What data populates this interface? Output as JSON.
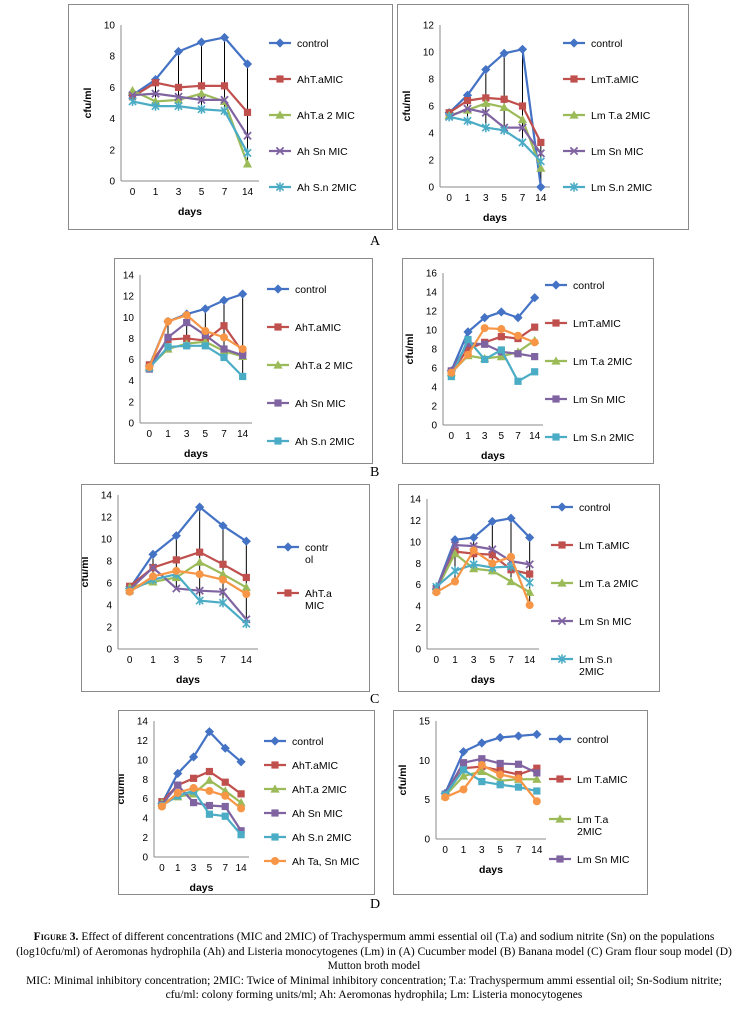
{
  "panel_labels": [
    "A",
    "B",
    "C",
    "D"
  ],
  "caption": {
    "figure_label": "Figure 3.",
    "line1": "Effect of different concentrations (MIC and 2MIC) of Trachyspermum ammi essential oil (T.a) and sodium nitrite (Sn) on the populations (log10cfu/ml) of Aeromonas hydrophila (Ah) and Listeria monocytogenes (Lm) in (A) Cucumber model (B) Banana model (C) Gram flour soup model (D) Mutton broth model",
    "line2": "MIC: Minimal inhibitory concentration; 2MIC: Twice of Minimal inhibitory concentration; T.a: Trachyspermum ammi essential oil; Sn-Sodium nitrite; cfu/ml: colony forming units/ml; Ah: Aeromonas hydrophila; Lm: Listeria monocytogenes"
  },
  "chart_data": [
    {
      "id": "A-left",
      "type": "line",
      "xlabel": "days",
      "ylabel": "cfu/ml",
      "categories": [
        "0",
        "1",
        "3",
        "5",
        "7",
        "14"
      ],
      "ylim": [
        0,
        10
      ],
      "ystep": 2,
      "droplines": true,
      "series": [
        {
          "name": "control",
          "color": "#4472C4",
          "marker": "diamond",
          "values": [
            5.5,
            6.5,
            8.3,
            8.9,
            9.2,
            7.5
          ]
        },
        {
          "name": "AhT.aMIC",
          "color": "#C0504D",
          "marker": "square",
          "values": [
            5.4,
            6.3,
            6.0,
            6.1,
            6.1,
            4.4
          ]
        },
        {
          "name": "AhT.a 2 MIC",
          "color": "#9BBB59",
          "marker": "triangle",
          "values": [
            5.8,
            5.1,
            5.2,
            5.6,
            5.1,
            1.1
          ]
        },
        {
          "name": "Ah Sn MIC",
          "color": "#8064A2",
          "marker": "x",
          "values": [
            5.5,
            5.6,
            5.4,
            5.2,
            5.2,
            2.9
          ]
        },
        {
          "name": "Ah S.n  2MIC",
          "color": "#4BACC6",
          "marker": "star",
          "values": [
            5.1,
            4.8,
            4.8,
            4.6,
            4.5,
            1.8
          ]
        }
      ]
    },
    {
      "id": "A-right",
      "type": "line",
      "xlabel": "days",
      "ylabel": "cfu/ml",
      "categories": [
        "0",
        "1",
        "3",
        "5",
        "7",
        "14"
      ],
      "ylim": [
        0,
        12
      ],
      "ystep": 2,
      "droplines": true,
      "series": [
        {
          "name": "control",
          "color": "#4472C4",
          "marker": "diamond",
          "values": [
            5.5,
            6.8,
            8.7,
            9.9,
            10.2,
            0
          ]
        },
        {
          "name": "LmT.aMIC",
          "color": "#C0504D",
          "marker": "square",
          "values": [
            5.5,
            6.4,
            6.6,
            6.5,
            6.0,
            3.3
          ]
        },
        {
          "name": "Lm T.a 2MIC",
          "color": "#9BBB59",
          "marker": "triangle",
          "values": [
            5.3,
            5.7,
            6.2,
            5.9,
            5.0,
            1.4
          ]
        },
        {
          "name": "Lm Sn MIC",
          "color": "#8064A2",
          "marker": "x",
          "values": [
            5.2,
            5.8,
            5.5,
            4.4,
            4.4,
            2.5
          ]
        },
        {
          "name": "Lm S.n 2MIC",
          "color": "#4BACC6",
          "marker": "star",
          "values": [
            5.2,
            4.9,
            4.4,
            4.2,
            3.3,
            1.9
          ]
        }
      ]
    },
    {
      "id": "B-left",
      "type": "line",
      "xlabel": "days",
      "ylabel": "cfu/ml",
      "categories": [
        "0",
        "1",
        "3",
        "5",
        "7",
        "14"
      ],
      "ylim": [
        0,
        14
      ],
      "ystep": 2,
      "droplines": true,
      "series": [
        {
          "name": "control",
          "color": "#4472C4",
          "marker": "diamond",
          "values": [
            5.4,
            9.6,
            10.3,
            10.8,
            11.6,
            12.2
          ]
        },
        {
          "name": "AhT.aMIC",
          "color": "#C0504D",
          "marker": "square",
          "values": [
            5.5,
            7.9,
            8.0,
            7.8,
            9.2,
            6.7
          ]
        },
        {
          "name": "AhT.a 2 MIC",
          "color": "#9BBB59",
          "marker": "triangle",
          "values": [
            5.3,
            7.0,
            7.5,
            7.7,
            6.8,
            6.3
          ]
        },
        {
          "name": "Ah Sn MIC",
          "color": "#8064A2",
          "marker": "square",
          "values": [
            5.1,
            8.1,
            9.5,
            8.3,
            7.0,
            6.4
          ]
        },
        {
          "name": "Ah S.n  2MIC",
          "color": "#4BACC6",
          "marker": "square",
          "values": [
            5.2,
            7.2,
            7.3,
            7.3,
            6.2,
            4.4
          ]
        },
        {
          "name": "",
          "color": "#F79646",
          "marker": "circle",
          "values": [
            5.3,
            9.6,
            10.2,
            8.7,
            8.1,
            7.0
          ]
        }
      ]
    },
    {
      "id": "B-right",
      "type": "line",
      "xlabel": "days",
      "ylabel": "cfu/ml",
      "categories": [
        "0",
        "1",
        "3",
        "5",
        "7",
        "14"
      ],
      "ylim": [
        0,
        16
      ],
      "ystep": 2,
      "droplines": false,
      "series": [
        {
          "name": "control",
          "color": "#4472C4",
          "marker": "diamond",
          "values": [
            5.7,
            9.8,
            11.3,
            11.9,
            11.3,
            13.4
          ]
        },
        {
          "name": "LmT.aMIC",
          "color": "#C0504D",
          "marker": "square",
          "values": [
            5.6,
            8.0,
            8.7,
            9.3,
            9.1,
            10.3
          ]
        },
        {
          "name": "Lm T.a 2MIC",
          "color": "#9BBB59",
          "marker": "triangle",
          "values": [
            5.5,
            7.3,
            7.0,
            7.2,
            7.7,
            8.9
          ]
        },
        {
          "name": "Lm Sn MIC",
          "color": "#8064A2",
          "marker": "square",
          "values": [
            5.7,
            8.6,
            8.5,
            7.7,
            7.5,
            7.2
          ]
        },
        {
          "name": "Lm S.n 2MIC",
          "color": "#4BACC6",
          "marker": "square",
          "values": [
            5.1,
            9.0,
            6.9,
            7.9,
            4.6,
            5.6
          ]
        },
        {
          "name": "",
          "color": "#F79646",
          "marker": "circle",
          "values": [
            5.5,
            7.4,
            10.2,
            10.1,
            9.4,
            8.7
          ]
        }
      ]
    },
    {
      "id": "C-left",
      "type": "line",
      "xlabel": "days",
      "ylabel": "cfu/ml",
      "categories": [
        "0",
        "1",
        "3",
        "5",
        "7",
        "14"
      ],
      "ylim": [
        0,
        14
      ],
      "ystep": 2,
      "droplines": true,
      "series": [
        {
          "name": "contr\nol",
          "color": "#4472C4",
          "marker": "diamond",
          "values": [
            5.5,
            8.6,
            10.3,
            12.9,
            11.2,
            9.8
          ]
        },
        {
          "name": "AhT.a\nMIC",
          "color": "#C0504D",
          "marker": "square",
          "values": [
            5.7,
            7.4,
            8.1,
            8.8,
            7.7,
            6.5
          ]
        },
        {
          "name": "",
          "color": "#9BBB59",
          "marker": "triangle",
          "values": [
            5.6,
            6.1,
            6.5,
            7.9,
            6.8,
            5.6
          ]
        },
        {
          "name": "",
          "color": "#8064A2",
          "marker": "x",
          "values": [
            5.4,
            7.4,
            5.5,
            5.3,
            5.2,
            2.7
          ]
        },
        {
          "name": "",
          "color": "#4BACC6",
          "marker": "star",
          "values": [
            5.3,
            6.3,
            6.8,
            4.4,
            4.2,
            2.3
          ]
        },
        {
          "name": "",
          "color": "#F79646",
          "marker": "circle",
          "values": [
            5.2,
            6.6,
            7.1,
            6.8,
            6.3,
            5.0
          ]
        }
      ]
    },
    {
      "id": "C-right",
      "type": "line",
      "xlabel": "days",
      "ylabel": "cfu/ml",
      "categories": [
        "0",
        "1",
        "3",
        "5",
        "7",
        "14"
      ],
      "ylim": [
        0,
        14
      ],
      "ystep": 2,
      "droplines": true,
      "series": [
        {
          "name": "control",
          "color": "#4472C4",
          "marker": "diamond",
          "values": [
            5.6,
            10.2,
            10.4,
            11.9,
            12.2,
            10.4
          ]
        },
        {
          "name": "Lm T.aMIC",
          "color": "#C0504D",
          "marker": "square",
          "values": [
            5.5,
            9.1,
            8.9,
            8.8,
            7.4,
            7.0
          ]
        },
        {
          "name": "Lm T.a 2MIC",
          "color": "#9BBB59",
          "marker": "triangle",
          "values": [
            5.5,
            8.9,
            7.5,
            7.3,
            6.3,
            5.3
          ]
        },
        {
          "name": "Lm Sn MIC",
          "color": "#8064A2",
          "marker": "x",
          "values": [
            5.6,
            9.7,
            9.6,
            9.3,
            8.2,
            7.9
          ]
        },
        {
          "name": "Lm S.n\n2MIC",
          "color": "#4BACC6",
          "marker": "star",
          "values": [
            5.8,
            7.3,
            7.9,
            7.6,
            7.7,
            6.2
          ]
        },
        {
          "name": "",
          "color": "#F79646",
          "marker": "circle",
          "values": [
            5.3,
            6.3,
            9.2,
            8.0,
            8.6,
            4.1
          ]
        }
      ]
    },
    {
      "id": "D-left",
      "type": "line",
      "xlabel": "days",
      "ylabel": "cfu/ml",
      "categories": [
        "0",
        "1",
        "3",
        "5",
        "7",
        "14"
      ],
      "ylim": [
        0,
        14
      ],
      "ystep": 2,
      "droplines": false,
      "series": [
        {
          "name": "control",
          "color": "#4472C4",
          "marker": "diamond",
          "values": [
            5.5,
            8.6,
            10.3,
            12.9,
            11.2,
            9.8
          ]
        },
        {
          "name": "AhT.aMIC",
          "color": "#C0504D",
          "marker": "square",
          "values": [
            5.7,
            7.4,
            8.1,
            8.8,
            7.7,
            6.5
          ]
        },
        {
          "name": "AhT.a 2MIC",
          "color": "#9BBB59",
          "marker": "triangle",
          "values": [
            5.6,
            6.2,
            6.5,
            7.9,
            6.8,
            5.6
          ]
        },
        {
          "name": "Ah Sn MIC",
          "color": "#8064A2",
          "marker": "square",
          "values": [
            5.4,
            7.4,
            5.6,
            5.3,
            5.2,
            2.7
          ]
        },
        {
          "name": "Ah S.n  2MIC",
          "color": "#4BACC6",
          "marker": "square",
          "values": [
            5.3,
            6.3,
            6.8,
            4.4,
            4.2,
            2.3
          ]
        },
        {
          "name": "Ah Ta, Sn MIC",
          "color": "#F79646",
          "marker": "circle",
          "values": [
            5.2,
            6.6,
            7.1,
            6.8,
            6.3,
            5.0
          ]
        }
      ]
    },
    {
      "id": "D-right",
      "type": "line",
      "xlabel": "days",
      "ylabel": "cfu/ml",
      "categories": [
        "0",
        "1",
        "3",
        "5",
        "7",
        "14"
      ],
      "ylim": [
        0,
        15
      ],
      "ystep": 5,
      "droplines": false,
      "series": [
        {
          "name": "control",
          "color": "#4472C4",
          "marker": "diamond",
          "values": [
            5.8,
            11.1,
            12.2,
            12.9,
            13.1,
            13.3
          ]
        },
        {
          "name": "Lm T.aMIC",
          "color": "#C0504D",
          "marker": "square",
          "values": [
            5.6,
            9.0,
            9.2,
            8.7,
            8.2,
            9.0
          ]
        },
        {
          "name": "Lm T.a\n2MIC",
          "color": "#9BBB59",
          "marker": "triangle",
          "values": [
            5.5,
            8.0,
            8.6,
            7.4,
            7.6,
            7.6
          ]
        },
        {
          "name": "Lm Sn MIC",
          "color": "#8064A2",
          "marker": "square",
          "values": [
            5.7,
            9.7,
            10.2,
            9.6,
            9.5,
            8.4
          ]
        },
        {
          "name": "",
          "color": "#4BACC6",
          "marker": "square",
          "values": [
            5.6,
            8.8,
            7.3,
            6.9,
            6.6,
            6.1
          ]
        },
        {
          "name": "",
          "color": "#F79646",
          "marker": "circle",
          "values": [
            5.3,
            6.3,
            9.4,
            8.2,
            7.7,
            4.8
          ]
        }
      ]
    }
  ]
}
